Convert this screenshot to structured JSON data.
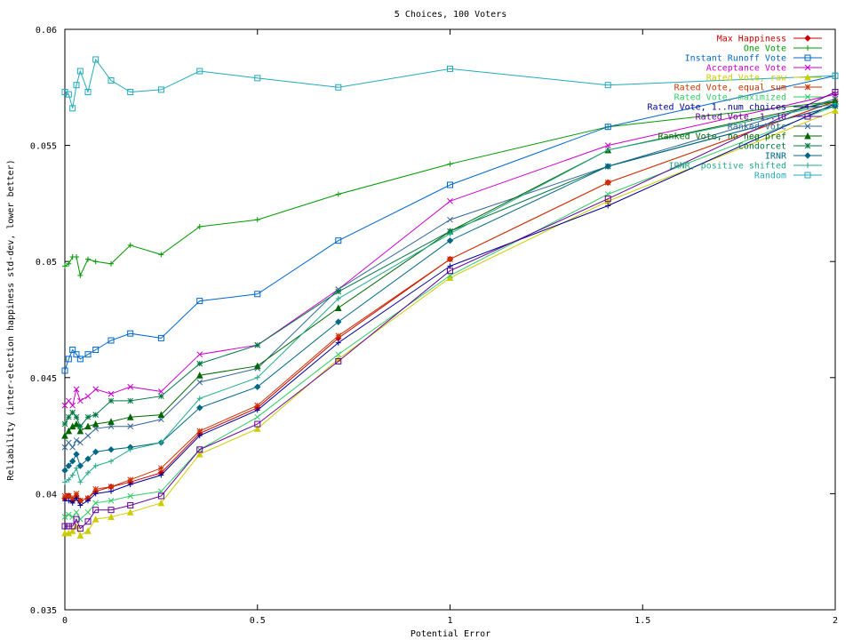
{
  "chart_data": {
    "type": "line",
    "title": "5 Choices, 100 Voters",
    "xlabel": "Potential Error",
    "ylabel": "Reliability (inter-election happiness std-dev, lower better)",
    "xlim": [
      0,
      2
    ],
    "ylim": [
      0.035,
      0.06
    ],
    "xticks": [
      "0",
      "0.5",
      "1",
      "1.5",
      "2"
    ],
    "yticks": [
      "0.035",
      "0.04",
      "0.045",
      "0.05",
      "0.055",
      "0.06"
    ],
    "grid": false,
    "legend_position": "top-right",
    "series": [
      {
        "name": "Max Happiness",
        "color": "#cc0000",
        "marker": "diamond",
        "x": [
          0,
          0.01,
          0.02,
          0.03,
          0.04,
          0.06,
          0.08,
          0.12,
          0.17,
          0.25,
          0.35,
          0.5,
          0.71,
          1,
          1.41,
          2
        ],
        "y": [
          0.0398,
          0.0399,
          0.0397,
          0.0399,
          0.0397,
          0.0398,
          0.0401,
          0.0403,
          0.0405,
          0.0409,
          0.0426,
          0.0437,
          0.0467,
          0.0501,
          0.0534,
          0.0569
        ]
      },
      {
        "name": "One Vote",
        "color": "#009900",
        "marker": "plus",
        "x": [
          0,
          0.01,
          0.02,
          0.03,
          0.04,
          0.06,
          0.08,
          0.12,
          0.17,
          0.25,
          0.35,
          0.5,
          0.71,
          1,
          1.41,
          2
        ],
        "y": [
          0.0498,
          0.0499,
          0.0502,
          0.0502,
          0.0494,
          0.0501,
          0.05,
          0.0499,
          0.0507,
          0.0503,
          0.0515,
          0.0518,
          0.0529,
          0.0542,
          0.0558,
          0.0569
        ]
      },
      {
        "name": "Instant Runoff Vote",
        "color": "#0066cc",
        "marker": "square",
        "x": [
          0,
          0.01,
          0.02,
          0.03,
          0.04,
          0.06,
          0.08,
          0.12,
          0.17,
          0.25,
          0.35,
          0.5,
          0.71,
          1,
          1.41,
          2
        ],
        "y": [
          0.0453,
          0.0458,
          0.0462,
          0.046,
          0.0458,
          0.046,
          0.0462,
          0.0466,
          0.0469,
          0.0467,
          0.0483,
          0.0486,
          0.0509,
          0.0533,
          0.0558,
          0.058
        ]
      },
      {
        "name": "Acceptance Vote",
        "color": "#cc00cc",
        "marker": "cross",
        "x": [
          0,
          0.01,
          0.02,
          0.03,
          0.04,
          0.06,
          0.08,
          0.12,
          0.17,
          0.25,
          0.35,
          0.5,
          0.71,
          1,
          1.41,
          2
        ],
        "y": [
          0.0438,
          0.044,
          0.0438,
          0.0445,
          0.044,
          0.0442,
          0.0445,
          0.0443,
          0.0446,
          0.0444,
          0.046,
          0.0464,
          0.0488,
          0.0526,
          0.055,
          0.0572
        ]
      },
      {
        "name": "Rated Vote, raw",
        "color": "#cccc00",
        "marker": "triangle",
        "x": [
          0,
          0.01,
          0.02,
          0.03,
          0.04,
          0.06,
          0.08,
          0.12,
          0.17,
          0.25,
          0.35,
          0.5,
          0.71,
          1,
          1.41,
          2
        ],
        "y": [
          0.0383,
          0.0383,
          0.0384,
          0.0386,
          0.0382,
          0.0384,
          0.0389,
          0.039,
          0.0392,
          0.0396,
          0.0417,
          0.0428,
          0.0458,
          0.0493,
          0.0526,
          0.0565
        ]
      },
      {
        "name": "Rated Vote, equal sum",
        "color": "#cc3300",
        "marker": "star",
        "x": [
          0,
          0.01,
          0.02,
          0.03,
          0.04,
          0.06,
          0.08,
          0.12,
          0.17,
          0.25,
          0.35,
          0.5,
          0.71,
          1,
          1.41,
          2
        ],
        "y": [
          0.0399,
          0.0399,
          0.0398,
          0.04,
          0.0397,
          0.0398,
          0.0402,
          0.0403,
          0.0406,
          0.0411,
          0.0427,
          0.0438,
          0.0468,
          0.0501,
          0.0534,
          0.0569
        ]
      },
      {
        "name": "Rated Vote, maximized",
        "color": "#33cc66",
        "marker": "cross",
        "x": [
          0,
          0.01,
          0.02,
          0.03,
          0.04,
          0.06,
          0.08,
          0.12,
          0.17,
          0.25,
          0.35,
          0.5,
          0.71,
          1,
          1.41,
          2
        ],
        "y": [
          0.039,
          0.0391,
          0.039,
          0.0392,
          0.0389,
          0.0392,
          0.0396,
          0.0397,
          0.0399,
          0.0401,
          0.0419,
          0.0433,
          0.046,
          0.0494,
          0.0529,
          0.0567
        ]
      },
      {
        "name": "Rated Vote, 1..num choices",
        "color": "#000099",
        "marker": "plus",
        "x": [
          0,
          0.01,
          0.02,
          0.03,
          0.04,
          0.06,
          0.08,
          0.12,
          0.17,
          0.25,
          0.35,
          0.5,
          0.71,
          1,
          1.41,
          2
        ],
        "y": [
          0.0397,
          0.0397,
          0.0396,
          0.0398,
          0.0395,
          0.0397,
          0.04,
          0.0401,
          0.0404,
          0.0408,
          0.0425,
          0.0436,
          0.0465,
          0.0498,
          0.0524,
          0.0568
        ]
      },
      {
        "name": "Rated Vote, 1..10",
        "color": "#660099",
        "marker": "square",
        "x": [
          0,
          0.01,
          0.02,
          0.03,
          0.04,
          0.06,
          0.08,
          0.12,
          0.17,
          0.25,
          0.35,
          0.5,
          0.71,
          1,
          1.41,
          2
        ],
        "y": [
          0.0386,
          0.0386,
          0.0386,
          0.0389,
          0.0385,
          0.0388,
          0.0393,
          0.0393,
          0.0395,
          0.0399,
          0.0419,
          0.043,
          0.0457,
          0.0496,
          0.0527,
          0.0573
        ]
      },
      {
        "name": "Ranked Vote",
        "color": "#336699",
        "marker": "cross",
        "x": [
          0,
          0.01,
          0.02,
          0.03,
          0.04,
          0.06,
          0.08,
          0.12,
          0.17,
          0.25,
          0.35,
          0.5,
          0.71,
          1,
          1.41,
          2
        ],
        "y": [
          0.042,
          0.0422,
          0.042,
          0.0423,
          0.0422,
          0.0425,
          0.0428,
          0.0429,
          0.0429,
          0.0432,
          0.0448,
          0.0454,
          0.0488,
          0.0518,
          0.0541,
          0.057
        ]
      },
      {
        "name": "Ranked Vote, no neg pref",
        "color": "#006600",
        "marker": "triangle",
        "x": [
          0,
          0.01,
          0.02,
          0.03,
          0.04,
          0.06,
          0.08,
          0.12,
          0.17,
          0.25,
          0.35,
          0.5,
          0.71,
          1,
          1.41,
          2
        ],
        "y": [
          0.0425,
          0.0427,
          0.0429,
          0.043,
          0.0427,
          0.0429,
          0.043,
          0.0431,
          0.0433,
          0.0434,
          0.0451,
          0.0455,
          0.048,
          0.0513,
          0.0548,
          0.0569
        ]
      },
      {
        "name": "Condorcet",
        "color": "#007744",
        "marker": "star",
        "x": [
          0,
          0.01,
          0.02,
          0.03,
          0.04,
          0.06,
          0.08,
          0.12,
          0.17,
          0.25,
          0.35,
          0.5,
          0.71,
          1,
          1.41,
          2
        ],
        "y": [
          0.043,
          0.0433,
          0.0435,
          0.0433,
          0.0429,
          0.0433,
          0.0434,
          0.044,
          0.044,
          0.0442,
          0.0456,
          0.0464,
          0.0487,
          0.0513,
          0.0541,
          0.0567
        ]
      },
      {
        "name": "IRNR",
        "color": "#006688",
        "marker": "diamond",
        "x": [
          0,
          0.01,
          0.02,
          0.03,
          0.04,
          0.06,
          0.08,
          0.12,
          0.17,
          0.25,
          0.35,
          0.5,
          0.71,
          1,
          1.41,
          2
        ],
        "y": [
          0.041,
          0.0412,
          0.0414,
          0.0417,
          0.0412,
          0.0415,
          0.0418,
          0.0419,
          0.042,
          0.0422,
          0.0437,
          0.0446,
          0.0474,
          0.0509,
          0.0541,
          0.0567
        ]
      },
      {
        "name": "IRNR, positive shifted",
        "color": "#22aa88",
        "marker": "plus",
        "x": [
          0,
          0.01,
          0.02,
          0.03,
          0.04,
          0.06,
          0.08,
          0.12,
          0.17,
          0.25,
          0.35,
          0.5,
          0.71,
          1,
          1.41,
          2
        ],
        "y": [
          0.0405,
          0.0406,
          0.0408,
          0.0411,
          0.0405,
          0.0409,
          0.0412,
          0.0414,
          0.0419,
          0.0422,
          0.0441,
          0.045,
          0.0484,
          0.0512,
          0.0548,
          0.0568
        ]
      },
      {
        "name": "Random",
        "color": "#22aabb",
        "marker": "square",
        "x": [
          0,
          0.01,
          0.02,
          0.03,
          0.04,
          0.06,
          0.08,
          0.12,
          0.17,
          0.25,
          0.35,
          0.5,
          0.71,
          1,
          1.41,
          2
        ],
        "y": [
          0.0573,
          0.0572,
          0.0566,
          0.0576,
          0.0582,
          0.0573,
          0.0587,
          0.0578,
          0.0573,
          0.0574,
          0.0582,
          0.0579,
          0.0575,
          0.0583,
          0.0576,
          0.058
        ]
      }
    ]
  }
}
